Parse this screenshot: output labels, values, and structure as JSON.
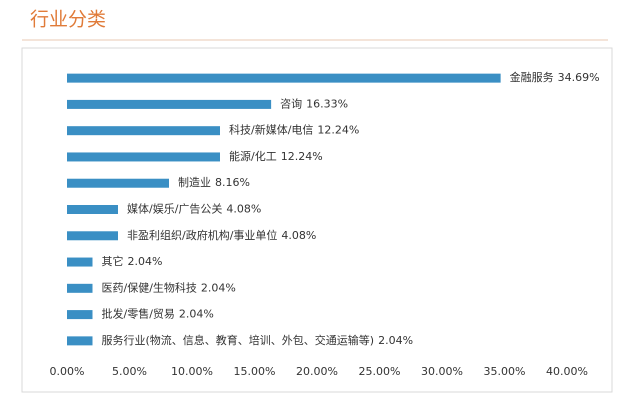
{
  "chart_data": {
    "type": "bar",
    "orientation": "horizontal",
    "title": "行业分类",
    "categories": [
      "金融服务",
      "咨询",
      "科技/新媒体/电信",
      "能源/化工",
      "制造业",
      "媒体/娱乐/广告公关",
      "非盈利组织/政府机构/事业单位",
      "其它",
      "医药/保健/生物科技",
      "批发/零售/贸易",
      "服务行业(物流、信息、教育、培训、外包、交通运输等)"
    ],
    "values": [
      34.69,
      16.33,
      12.24,
      12.24,
      8.16,
      4.08,
      4.08,
      2.04,
      2.04,
      2.04,
      2.04
    ],
    "value_labels": [
      "34.69%",
      "16.33%",
      "12.24%",
      "12.24%",
      "8.16%",
      "4.08%",
      "4.08%",
      "2.04%",
      "2.04%",
      "2.04%",
      "2.04%"
    ],
    "color": "#3a8fc4",
    "xlim": [
      0,
      40
    ],
    "xticks": [
      {
        "value": 0,
        "label": "0.00%"
      },
      {
        "value": 5,
        "label": "5.00%"
      },
      {
        "value": 10,
        "label": "10.00%"
      },
      {
        "value": 15,
        "label": "15.00%"
      },
      {
        "value": 20,
        "label": "20.00%"
      },
      {
        "value": 25,
        "label": "25.00%"
      },
      {
        "value": 30,
        "label": "30.00%"
      },
      {
        "value": 35,
        "label": "35.00%"
      },
      {
        "value": 40,
        "label": "40.00%"
      }
    ],
    "grid": false
  }
}
